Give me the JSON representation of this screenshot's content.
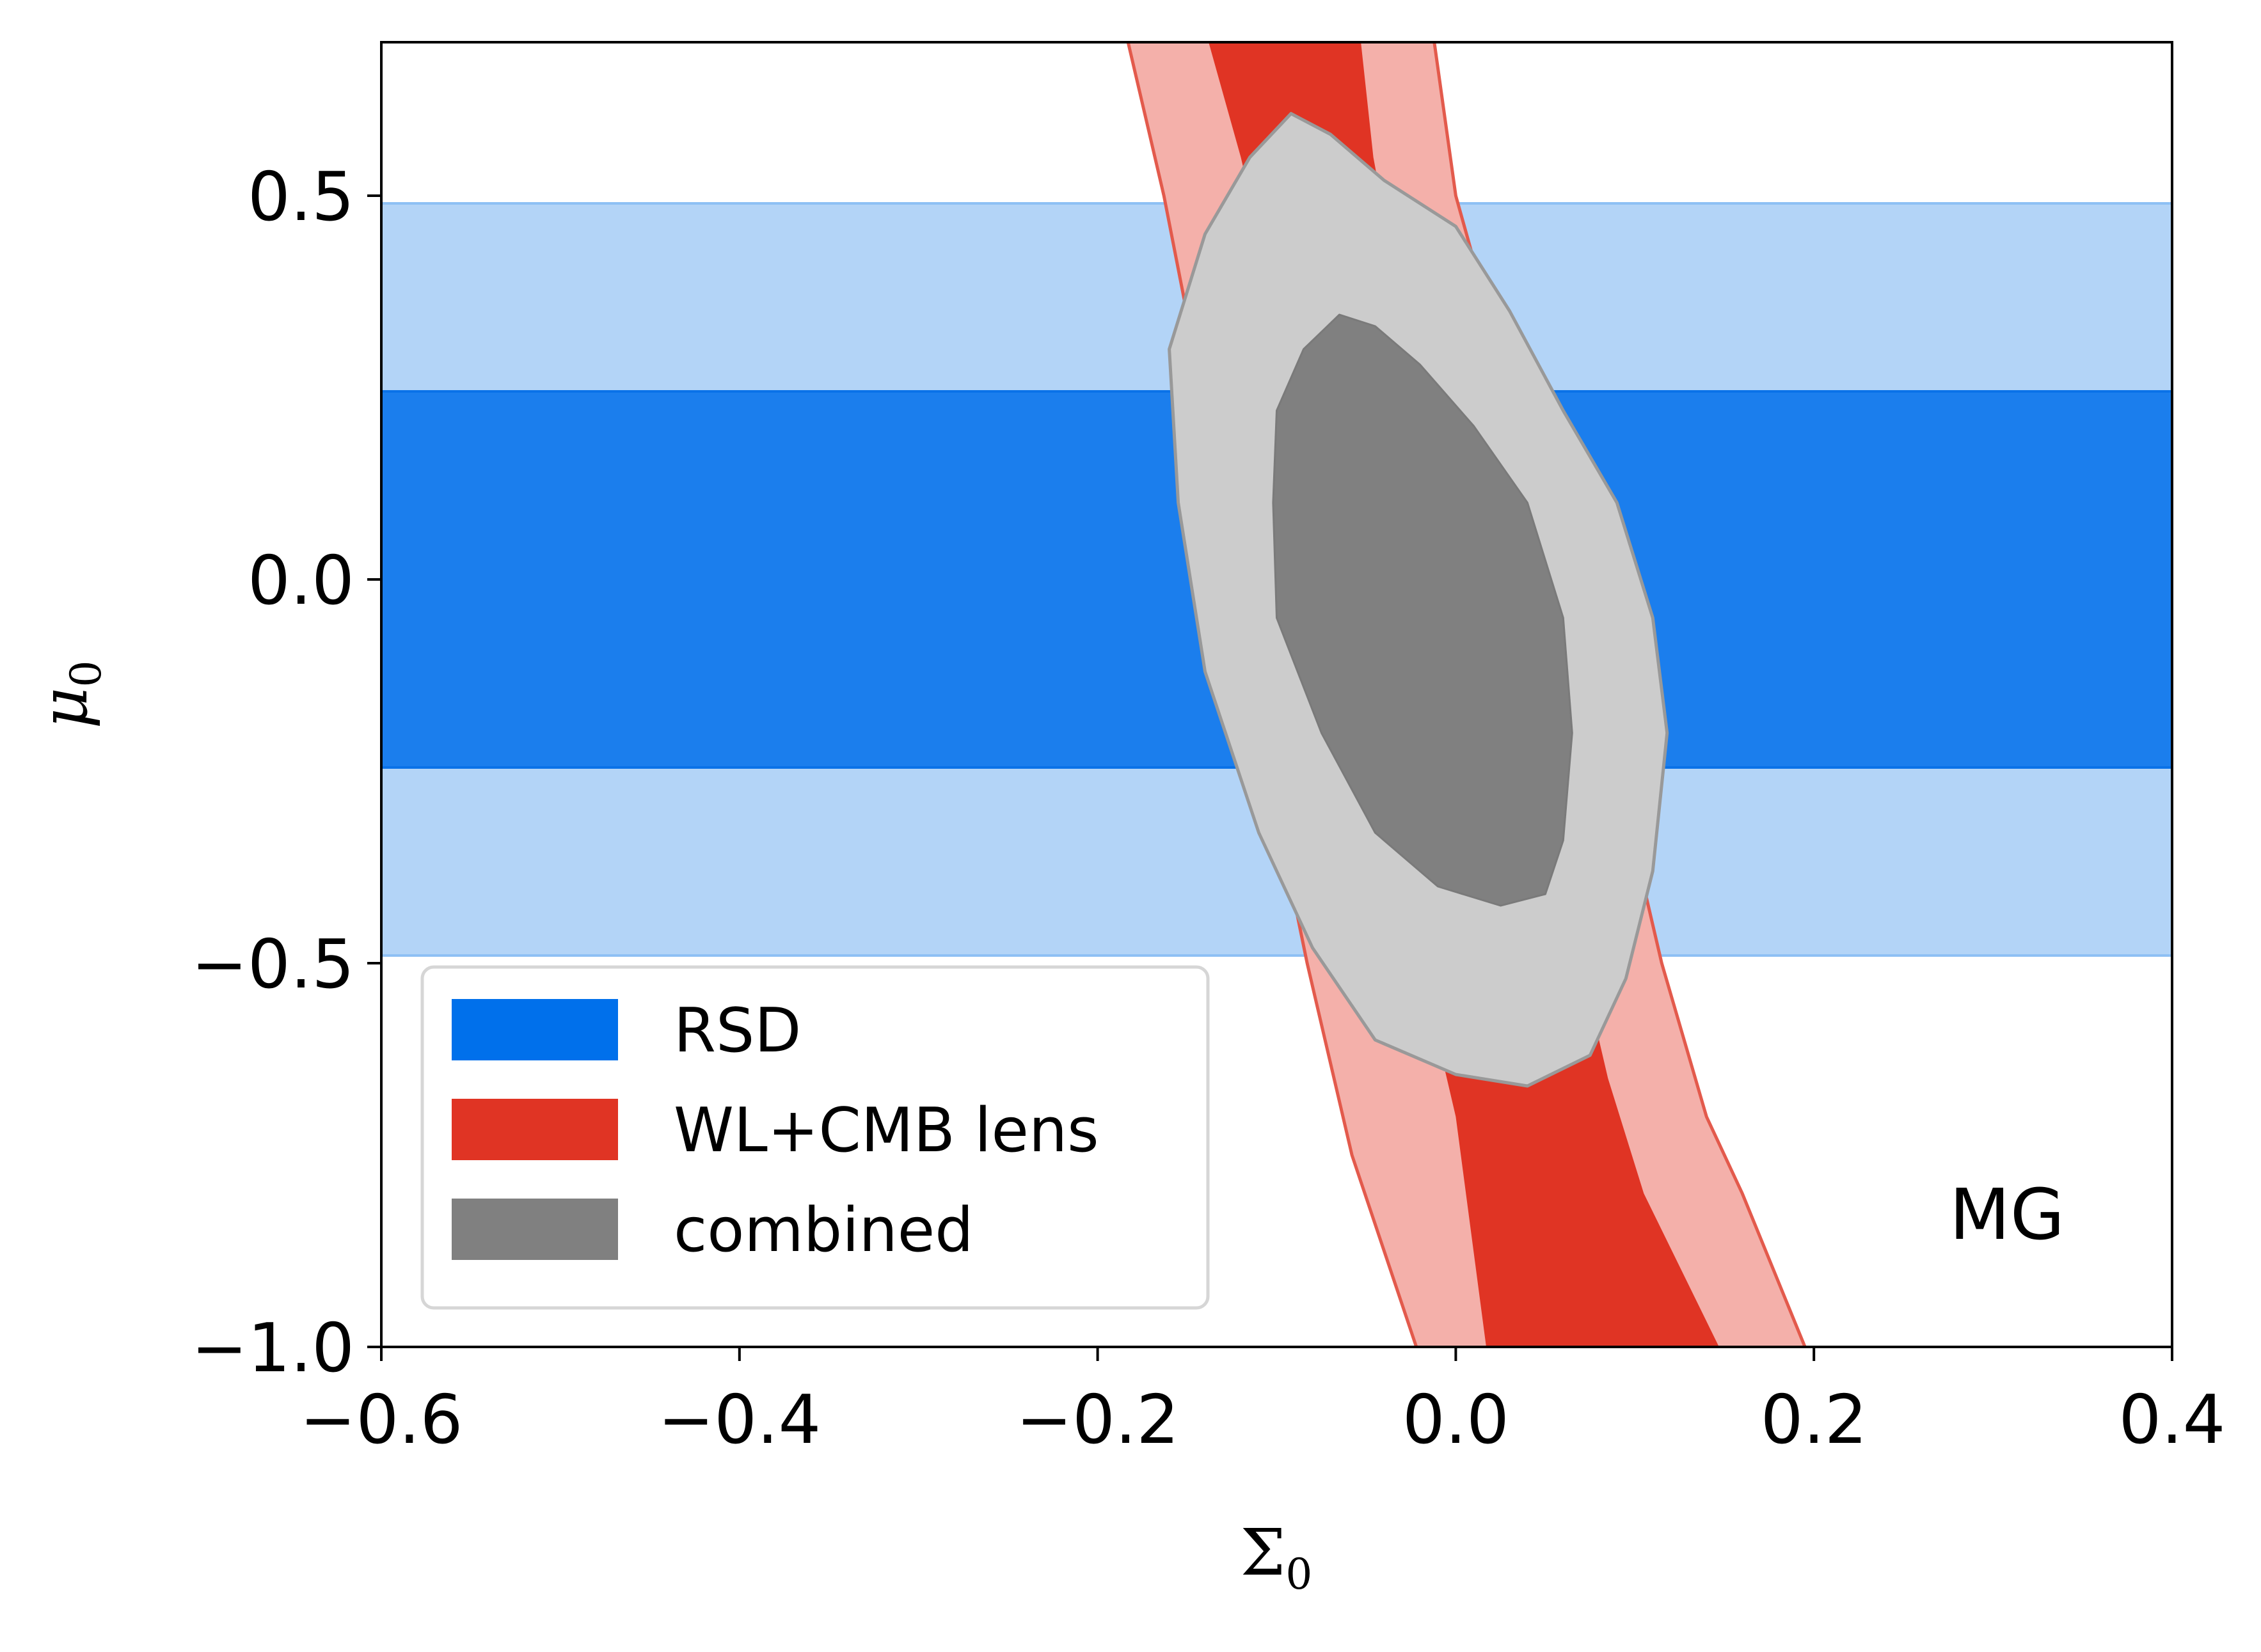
{
  "chart_data": {
    "type": "contour",
    "xlabel": "Σ",
    "xlabel_sub": "0",
    "ylabel": "μ",
    "ylabel_sub": "0",
    "xlim": [
      -0.6,
      0.4
    ],
    "ylim": [
      -1.0,
      0.7
    ],
    "x_ticks": [
      -0.6,
      -0.4,
      -0.2,
      0.0,
      0.2,
      0.4
    ],
    "x_tick_labels": [
      "−0.6",
      "−0.4",
      "−0.2",
      "0.0",
      "0.2",
      "0.4"
    ],
    "y_ticks": [
      -1.0,
      -0.5,
      0.0,
      0.5
    ],
    "y_tick_labels": [
      "−1.0",
      "−0.5",
      "0.0",
      "0.5"
    ],
    "grid": false,
    "annotation": "MG",
    "legend_position": "lower-left",
    "series": [
      {
        "name": "RSD",
        "color": "#1b7eed",
        "legend_color": "#0070eb",
        "outer_color": "#b3d4f7",
        "outer_edge": "#8ec0f4",
        "inner_band": [
          -0.245,
          0.245
        ],
        "outer_band": [
          -0.49,
          0.49
        ]
      },
      {
        "name": "WL+CMB lens",
        "color": "#e03424",
        "legend_color": "#e03424",
        "outer_color": "#f4b0aa",
        "edge_color": "#e35a4c",
        "outer_left": [
          [
            -0.183,
            0.7
          ],
          [
            -0.163,
            0.5
          ],
          [
            -0.142,
            0.25
          ],
          [
            -0.125,
            0.0
          ],
          [
            -0.105,
            -0.25
          ],
          [
            -0.083,
            -0.5
          ],
          [
            -0.058,
            -0.75
          ],
          [
            -0.022,
            -1.0
          ]
        ],
        "outer_right": [
          [
            -0.012,
            0.7
          ],
          [
            0.0,
            0.5
          ],
          [
            0.03,
            0.25
          ],
          [
            0.07,
            0.0
          ],
          [
            0.09,
            -0.25
          ],
          [
            0.115,
            -0.5
          ],
          [
            0.14,
            -0.7
          ],
          [
            0.16,
            -0.8
          ],
          [
            0.195,
            -1.0
          ]
        ],
        "inner_left": [
          [
            -0.138,
            0.7
          ],
          [
            -0.12,
            0.55
          ],
          [
            -0.1,
            0.35
          ],
          [
            -0.085,
            0.15
          ],
          [
            -0.062,
            -0.1
          ],
          [
            -0.04,
            -0.3
          ],
          [
            -0.02,
            -0.5
          ],
          [
            0.0,
            -0.7
          ],
          [
            0.017,
            -1.0
          ]
        ],
        "inner_right": [
          [
            -0.053,
            0.7
          ],
          [
            -0.046,
            0.55
          ],
          [
            -0.03,
            0.35
          ],
          [
            0.0,
            0.15
          ],
          [
            0.035,
            -0.1
          ],
          [
            0.05,
            -0.3
          ],
          [
            0.07,
            -0.5
          ],
          [
            0.085,
            -0.65
          ],
          [
            0.105,
            -0.8
          ],
          [
            0.147,
            -1.0
          ]
        ]
      },
      {
        "name": "combined",
        "color": "#808080",
        "legend_color": "#808080",
        "outer_color": "#cccccc",
        "edge_color": "#999999",
        "outer_contour": [
          [
            -0.092,
            0.607
          ],
          [
            -0.07,
            0.58
          ],
          [
            -0.04,
            0.52
          ],
          [
            0.0,
            0.46
          ],
          [
            0.03,
            0.35
          ],
          [
            0.06,
            0.22
          ],
          [
            0.09,
            0.1
          ],
          [
            0.11,
            -0.05
          ],
          [
            0.118,
            -0.2
          ],
          [
            0.11,
            -0.38
          ],
          [
            0.095,
            -0.52
          ],
          [
            0.075,
            -0.62
          ],
          [
            0.04,
            -0.66
          ],
          [
            0.0,
            -0.645
          ],
          [
            -0.045,
            -0.6
          ],
          [
            -0.08,
            -0.48
          ],
          [
            -0.11,
            -0.33
          ],
          [
            -0.14,
            -0.12
          ],
          [
            -0.155,
            0.1
          ],
          [
            -0.16,
            0.3
          ],
          [
            -0.14,
            0.45
          ],
          [
            -0.115,
            0.55
          ]
        ],
        "inner_contour": [
          [
            -0.065,
            0.345
          ],
          [
            -0.045,
            0.33
          ],
          [
            -0.02,
            0.28
          ],
          [
            0.01,
            0.2
          ],
          [
            0.04,
            0.1
          ],
          [
            0.06,
            -0.05
          ],
          [
            0.065,
            -0.2
          ],
          [
            0.06,
            -0.34
          ],
          [
            0.05,
            -0.41
          ],
          [
            0.025,
            -0.425
          ],
          [
            -0.01,
            -0.4
          ],
          [
            -0.045,
            -0.33
          ],
          [
            -0.075,
            -0.2
          ],
          [
            -0.1,
            -0.05
          ],
          [
            -0.102,
            0.1
          ],
          [
            -0.1,
            0.22
          ],
          [
            -0.085,
            0.3
          ]
        ]
      }
    ]
  }
}
